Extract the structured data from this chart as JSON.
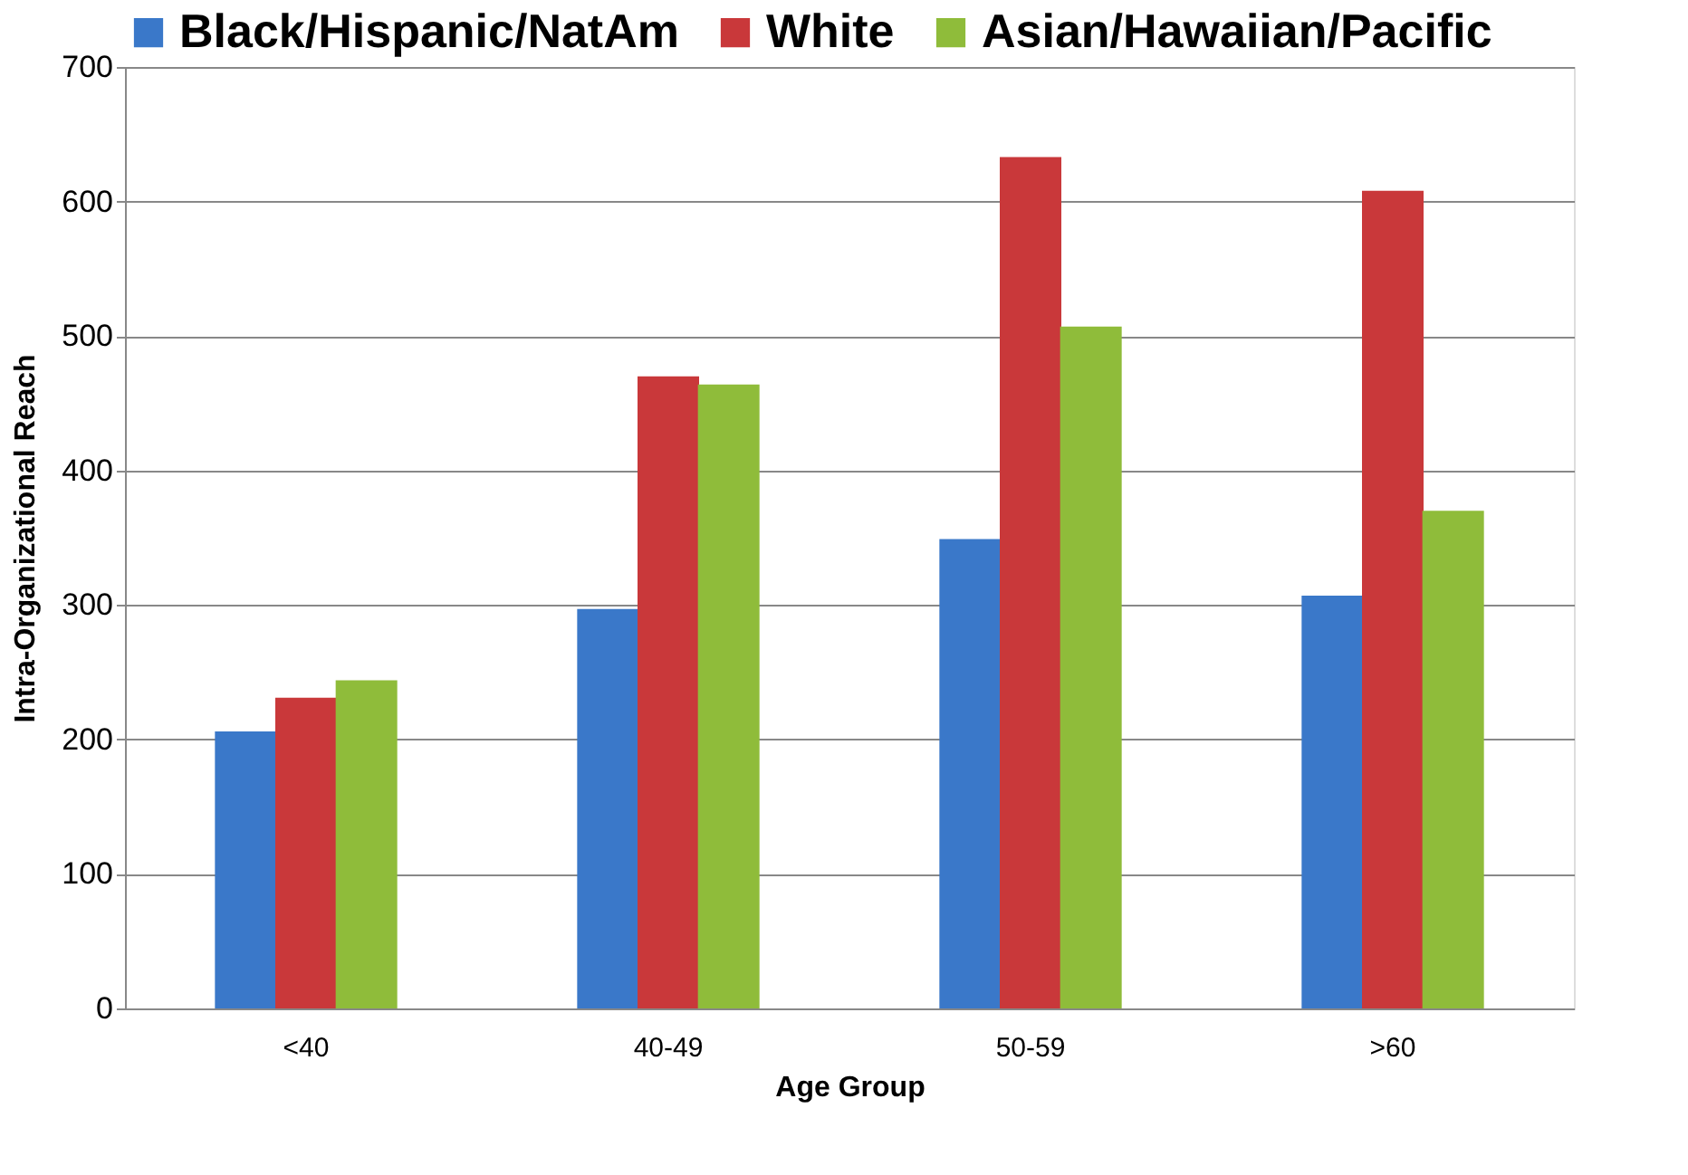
{
  "chart_data": {
    "type": "bar",
    "xlabel": "Age Group",
    "ylabel": "Intra-Organizational Reach",
    "categories": [
      "<40",
      "40-49",
      "50-59",
      ">60"
    ],
    "series": [
      {
        "name": "Black/Hispanic/NatAm",
        "color": "#3a78c9",
        "values": [
          206,
          297,
          349,
          307
        ]
      },
      {
        "name": "White",
        "color": "#c9383a",
        "values": [
          231,
          470,
          633,
          608
        ]
      },
      {
        "name": "Asian/Hawaiian/Pacific",
        "color": "#8fbc3a",
        "values": [
          244,
          464,
          507,
          370
        ]
      }
    ],
    "ylim": [
      0,
      700
    ],
    "yticks": [
      0,
      100,
      200,
      300,
      400,
      500,
      600,
      700
    ],
    "grid": "y",
    "legend": "top"
  }
}
